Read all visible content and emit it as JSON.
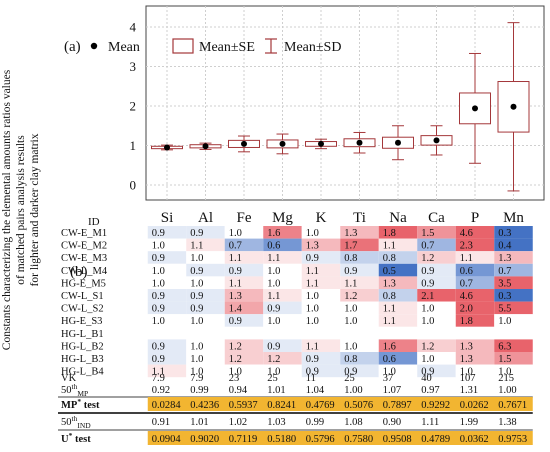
{
  "ylabel_lines": [
    "Constants characterizing the elemental amounts ratios values",
    "of matched pairs analysis results",
    "for lighter and darker clay matrix"
  ],
  "panel_a_label": "(a)",
  "panel_b_label": "(b)",
  "legend": {
    "mean": "Mean",
    "se": "Mean±SE",
    "sd": "Mean±SD"
  },
  "colors": {
    "box": "#a4373a",
    "grid": "#cfcfcf",
    "blue": "#4472c4",
    "red": "#e8636b",
    "highlight": "#f2b531"
  },
  "chart_data": {
    "type": "box",
    "ylim": [
      -0.4,
      4.4
    ],
    "yticks": [
      0,
      1,
      2,
      3,
      4
    ],
    "grid": true,
    "legend_position": "top-left",
    "categories": [
      "Si",
      "Al",
      "Fe",
      "Mg",
      "K",
      "Ti",
      "Na",
      "Ca",
      "P",
      "Mn"
    ],
    "mean": [
      0.95,
      0.98,
      1.04,
      1.04,
      1.04,
      1.07,
      1.07,
      1.13,
      1.94,
      1.98
    ],
    "se_low": [
      0.92,
      0.94,
      0.95,
      0.94,
      0.98,
      0.97,
      0.93,
      1.01,
      1.55,
      1.34
    ],
    "se_high": [
      0.98,
      1.02,
      1.13,
      1.14,
      1.1,
      1.17,
      1.21,
      1.25,
      2.33,
      2.62
    ],
    "sd_low": [
      0.89,
      0.9,
      0.84,
      0.79,
      0.92,
      0.81,
      0.64,
      0.76,
      0.55,
      -0.15
    ],
    "sd_high": [
      1.01,
      1.06,
      1.24,
      1.29,
      1.16,
      1.33,
      1.5,
      1.5,
      3.33,
      4.11
    ]
  },
  "table": {
    "id_label": "ID",
    "columns": [
      "Si",
      "Al",
      "Fe",
      "Mg",
      "K",
      "Ti",
      "Na",
      "Ca",
      "P",
      "Mn"
    ],
    "rows": [
      {
        "id": "CW-E_M1",
        "values": [
          "0.9",
          "0.9",
          "1.0",
          "1.6",
          "1.0",
          "1.3",
          "1.8",
          "1.5",
          "4.6",
          "0.3"
        ]
      },
      {
        "id": "CW-E_M2",
        "values": [
          "1.0",
          "1.1",
          "0.7",
          "0.6",
          "1.3",
          "1.7",
          "1.1",
          "0.7",
          "2.3",
          "0.4"
        ]
      },
      {
        "id": "CW-E_M3",
        "values": [
          "0.9",
          "1.0",
          "1.1",
          "1.1",
          "0.9",
          "0.8",
          "0.8",
          "1.2",
          "1.1",
          "1.3"
        ]
      },
      {
        "id": "CW-L_M4",
        "values": [
          "1.0",
          "0.9",
          "0.9",
          "1.0",
          "1.1",
          "0.9",
          "0.5",
          "0.9",
          "0.6",
          "0.7"
        ]
      },
      {
        "id": "HG-E_M5",
        "values": [
          "1.0",
          "1.0",
          "1.1",
          "1.0",
          "1.1",
          "1.1",
          "1.3",
          "0.9",
          "0.7",
          "3.5"
        ]
      },
      {
        "id": "CW-L_S1",
        "values": [
          "0.9",
          "0.9",
          "1.3",
          "1.1",
          "1.0",
          "1.2",
          "0.8",
          "2.1",
          "4.6",
          "0.3"
        ]
      },
      {
        "id": "CW-L_S2",
        "values": [
          "0.9",
          "0.9",
          "1.4",
          "0.9",
          "1.0",
          "1.0",
          "1.1",
          "1.0",
          "2.0",
          "5.5"
        ]
      },
      {
        "id": "HG-E_S3",
        "values": [
          "1.0",
          "1.0",
          "0.9",
          "1.0",
          "1.0",
          "1.0",
          "1.1",
          "1.0",
          "1.8",
          "1.0"
        ]
      },
      {
        "id": "HG-L_B1",
        "values": [
          "",
          "",
          "",
          "",
          "",
          "",
          "",
          "",
          "",
          ""
        ]
      },
      {
        "id": "HG-L_B2",
        "values": [
          "0.9",
          "1.0",
          "1.2",
          "0.9",
          "1.1",
          "1.0",
          "1.6",
          "1.2",
          "1.3",
          "6.3"
        ]
      },
      {
        "id": "HG-L_B3",
        "values": [
          "0.9",
          "1.0",
          "1.2",
          "1.2",
          "0.9",
          "0.8",
          "0.6",
          "1.0",
          "1.3",
          "1.5"
        ]
      },
      {
        "id": "HG-L_B4",
        "values": [
          "1.1",
          "1.0",
          "1.0",
          "1.0",
          "0.9",
          "0.9",
          "1.0",
          "0.9",
          "1.0",
          "1.0"
        ]
      }
    ],
    "vk": {
      "label": "VK",
      "values": [
        "7.9",
        "7.9",
        "23",
        "25",
        "11",
        "25",
        "37",
        "40",
        "107",
        "215"
      ]
    },
    "mp50": {
      "label": "50",
      "sup": "th",
      "sub": "MP",
      "values": [
        "0.92",
        "0.99",
        "0.94",
        "1.01",
        "1.04",
        "1.00",
        "1.07",
        "0.97",
        "1.31",
        "1.00"
      ]
    },
    "mptest": {
      "label": "MP",
      "sup": "*",
      "suffix": " test",
      "values": [
        "0.0284",
        "0.4236",
        "0.5937",
        "0.8241",
        "0.4769",
        "0.5076",
        "0.7897",
        "0.9292",
        "0.0262",
        "0.7671"
      ]
    },
    "ind50": {
      "label": "50",
      "sup": "th",
      "sub": "IND",
      "values": [
        "0.91",
        "1.01",
        "1.02",
        "1.03",
        "0.99",
        "1.08",
        "0.90",
        "1.11",
        "1.99",
        "1.38"
      ]
    },
    "utest": {
      "label": "U",
      "sup": "*",
      "suffix": " test",
      "values": [
        "0.0904",
        "0.9020",
        "0.7119",
        "0.5180",
        "0.5796",
        "0.7580",
        "0.9508",
        "0.4789",
        "0.0362",
        "0.9753"
      ]
    }
  }
}
